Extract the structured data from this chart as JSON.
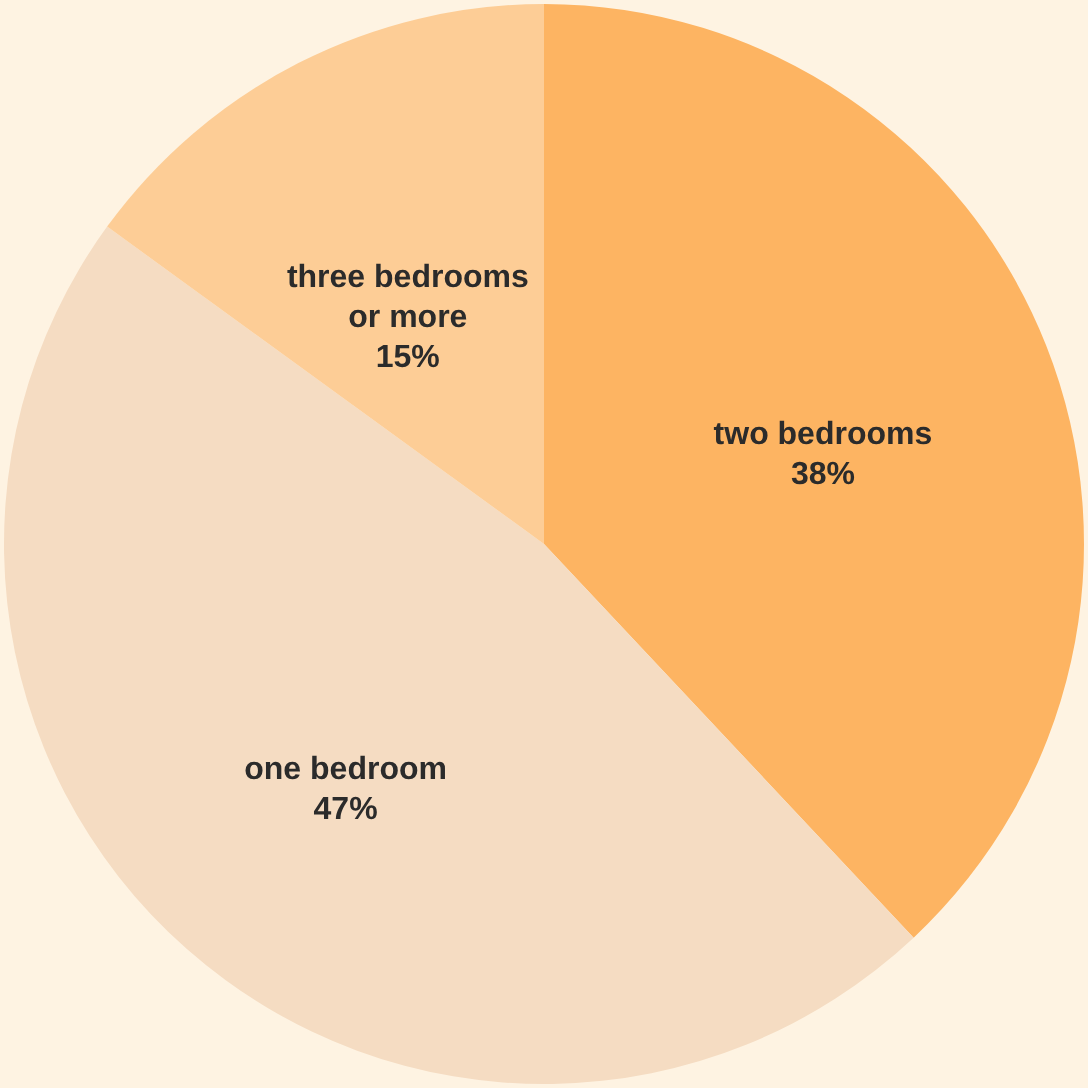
{
  "chart_data": {
    "type": "pie",
    "categories": [
      "two bedrooms",
      "one bedroom",
      "three bedrooms or more"
    ],
    "values": [
      38,
      47,
      15
    ],
    "value_labels": [
      "38%",
      "47%",
      "15%"
    ],
    "colors": [
      "#fdb462",
      "#f5dcc2",
      "#fdcd96"
    ]
  }
}
